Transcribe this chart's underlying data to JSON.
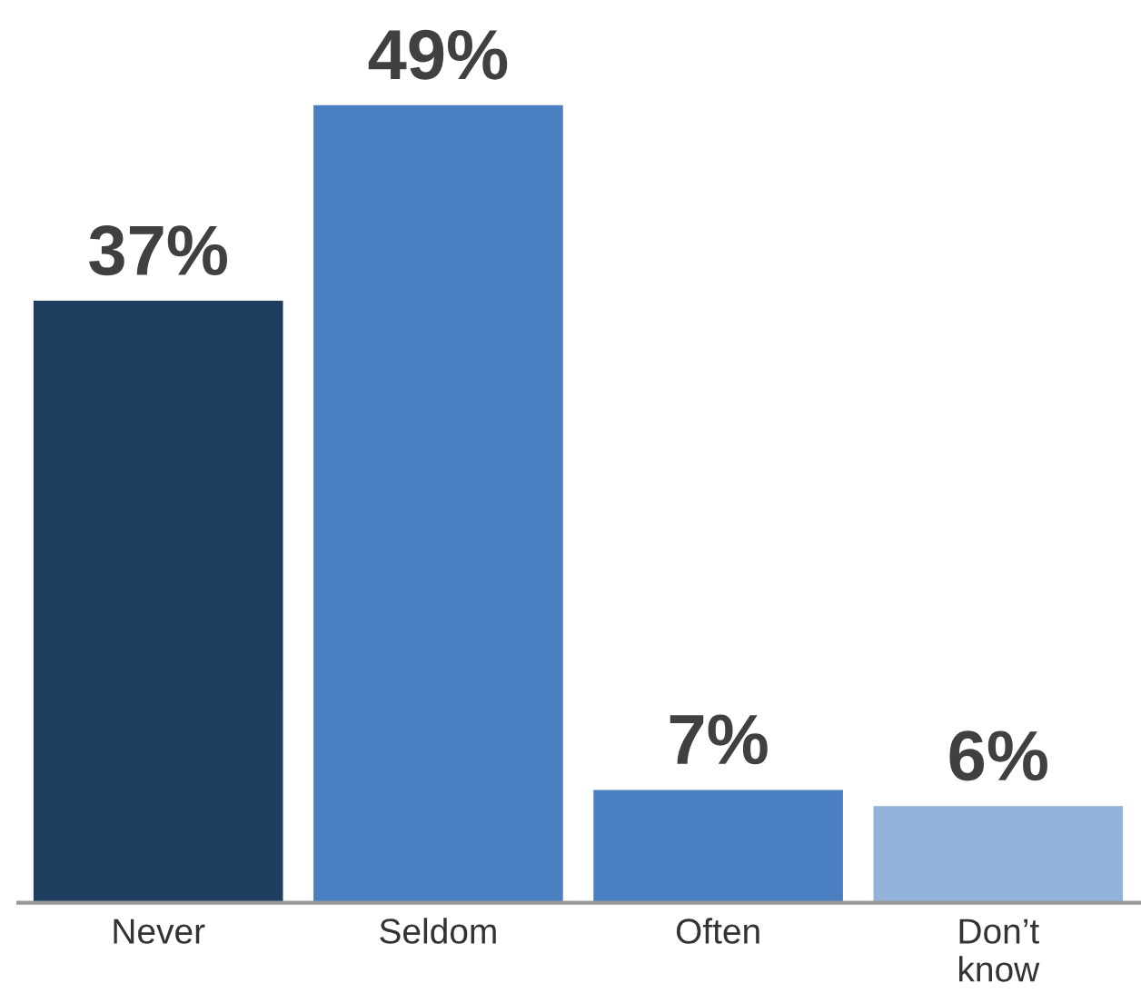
{
  "chart_data": {
    "type": "bar",
    "categories": [
      "Never",
      "Seldom",
      "Often",
      "Don’t\nknow"
    ],
    "values": [
      37,
      49,
      7,
      6
    ],
    "colors": [
      "#1f3d5e",
      "#4a7fc1",
      "#4a7fc1",
      "#93b2d9"
    ],
    "value_labels": [
      "37%",
      "49%",
      "7%",
      "6%"
    ],
    "tick_labels": "x",
    "grid": false,
    "legend": false
  }
}
